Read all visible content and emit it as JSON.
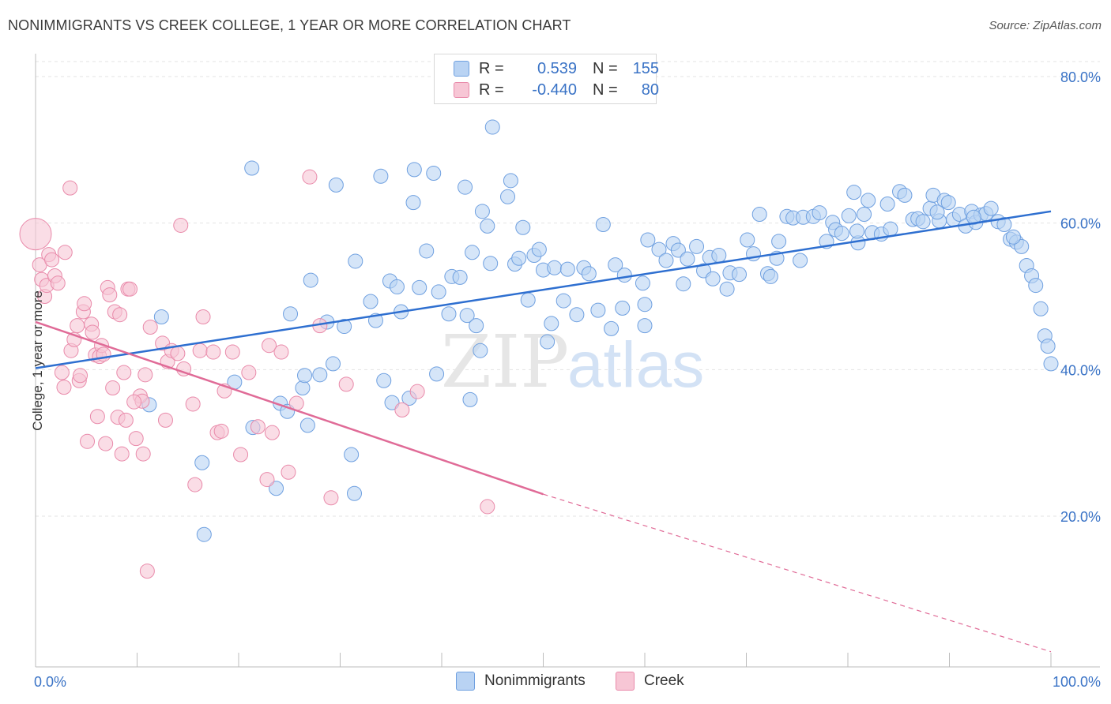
{
  "title": "NONIMMIGRANTS VS CREEK COLLEGE, 1 YEAR OR MORE CORRELATION CHART",
  "source": "Source: ZipAtlas.com",
  "watermark": {
    "zip": "ZIP",
    "atlas": "atlas"
  },
  "legend_top": {
    "rows": [
      {
        "r_label": "R =",
        "r_value": "0.539",
        "n_label": "N =",
        "n_value": "155",
        "color": "#a9c8ef"
      },
      {
        "r_label": "R =",
        "r_value": "-0.440",
        "n_label": "N =",
        "n_value": "80",
        "color": "#f5b8cb"
      }
    ]
  },
  "legend_bottom": [
    {
      "label": "Nonimmigrants",
      "color": "#a9c8ef"
    },
    {
      "label": "Creek",
      "color": "#f5b8cb"
    }
  ],
  "chart_data": {
    "type": "scatter",
    "title": "NONIMMIGRANTS VS CREEK COLLEGE, 1 YEAR OR MORE CORRELATION CHART",
    "xlabel": "",
    "ylabel": "College, 1 year or more",
    "xlim": [
      0,
      100
    ],
    "ylim": [
      0,
      80
    ],
    "x_ticks": [
      "0.0%",
      "100.0%"
    ],
    "y_ticks": [
      {
        "value": 20,
        "label": "20.0%"
      },
      {
        "value": 40,
        "label": "40.0%"
      },
      {
        "value": 60,
        "label": "60.0%"
      },
      {
        "value": 80,
        "label": "80.0%"
      }
    ],
    "grid": true,
    "series": [
      {
        "name": "Nonimmigrants",
        "color": "#6fa0e0",
        "fill": "#b9d3f3",
        "trend": {
          "x0": 0,
          "y0": 40.2,
          "x1": 100,
          "y1": 61.6,
          "color": "#2e6fd0"
        },
        "points": [
          [
            12.4,
            47.2
          ],
          [
            11.2,
            35.2
          ],
          [
            16.6,
            17.5
          ],
          [
            19.6,
            38.3
          ],
          [
            21.4,
            32.1
          ],
          [
            21.3,
            67.5
          ],
          [
            23.7,
            23.8
          ],
          [
            24.1,
            35.4
          ],
          [
            24.8,
            34.3
          ],
          [
            25.1,
            47.6
          ],
          [
            26.3,
            37.5
          ],
          [
            26.5,
            39.2
          ],
          [
            26.8,
            32.4
          ],
          [
            27.1,
            52.2
          ],
          [
            28.0,
            39.3
          ],
          [
            28.7,
            46.5
          ],
          [
            29.3,
            40.8
          ],
          [
            29.6,
            65.2
          ],
          [
            30.4,
            45.9
          ],
          [
            31.1,
            28.4
          ],
          [
            31.4,
            23.1
          ],
          [
            31.5,
            54.8
          ],
          [
            33.0,
            49.3
          ],
          [
            33.5,
            46.7
          ],
          [
            34.0,
            66.4
          ],
          [
            34.3,
            38.5
          ],
          [
            34.9,
            52.1
          ],
          [
            35.1,
            35.5
          ],
          [
            35.6,
            51.3
          ],
          [
            36.0,
            47.9
          ],
          [
            37.2,
            62.8
          ],
          [
            37.3,
            67.3
          ],
          [
            37.8,
            51.2
          ],
          [
            38.5,
            56.2
          ],
          [
            39.2,
            66.8
          ],
          [
            39.5,
            39.4
          ],
          [
            39.7,
            50.6
          ],
          [
            40.7,
            47.6
          ],
          [
            41.0,
            52.7
          ],
          [
            41.8,
            52.6
          ],
          [
            42.3,
            64.9
          ],
          [
            42.5,
            47.4
          ],
          [
            42.8,
            35.9
          ],
          [
            43.0,
            56.0
          ],
          [
            43.4,
            46.0
          ],
          [
            43.8,
            42.6
          ],
          [
            44.0,
            61.6
          ],
          [
            44.5,
            59.6
          ],
          [
            44.8,
            54.5
          ],
          [
            45.0,
            73.1
          ],
          [
            46.5,
            63.6
          ],
          [
            46.8,
            65.8
          ],
          [
            47.2,
            54.4
          ],
          [
            47.6,
            55.2
          ],
          [
            48.0,
            59.4
          ],
          [
            48.5,
            49.5
          ],
          [
            49.1,
            55.6
          ],
          [
            49.6,
            56.4
          ],
          [
            50.0,
            53.6
          ],
          [
            50.4,
            43.8
          ],
          [
            50.8,
            46.3
          ],
          [
            51.1,
            53.9
          ],
          [
            52.0,
            49.4
          ],
          [
            52.4,
            53.7
          ],
          [
            53.3,
            47.5
          ],
          [
            54.0,
            53.9
          ],
          [
            54.5,
            53.1
          ],
          [
            55.4,
            48.1
          ],
          [
            55.9,
            59.8
          ],
          [
            56.7,
            45.6
          ],
          [
            57.1,
            54.3
          ],
          [
            57.8,
            48.4
          ],
          [
            58.0,
            52.9
          ],
          [
            59.8,
            51.8
          ],
          [
            60.0,
            48.9
          ],
          [
            60.3,
            57.7
          ],
          [
            61.4,
            56.4
          ],
          [
            62.1,
            54.9
          ],
          [
            62.8,
            57.2
          ],
          [
            63.3,
            56.3
          ],
          [
            63.8,
            51.7
          ],
          [
            64.2,
            55.1
          ],
          [
            65.1,
            56.8
          ],
          [
            65.8,
            53.5
          ],
          [
            66.4,
            55.3
          ],
          [
            67.3,
            55.6
          ],
          [
            68.1,
            51.0
          ],
          [
            68.4,
            53.2
          ],
          [
            69.3,
            53.0
          ],
          [
            70.1,
            57.7
          ],
          [
            70.7,
            55.8
          ],
          [
            71.3,
            61.2
          ],
          [
            72.1,
            53.1
          ],
          [
            72.4,
            52.7
          ],
          [
            73.2,
            57.5
          ],
          [
            74.0,
            60.9
          ],
          [
            74.6,
            60.7
          ],
          [
            75.3,
            54.9
          ],
          [
            75.6,
            60.8
          ],
          [
            76.6,
            60.9
          ],
          [
            77.2,
            61.4
          ],
          [
            77.9,
            57.5
          ],
          [
            78.5,
            60.1
          ],
          [
            78.8,
            59.1
          ],
          [
            79.4,
            58.6
          ],
          [
            80.1,
            61.0
          ],
          [
            80.6,
            64.2
          ],
          [
            81.0,
            57.3
          ],
          [
            81.6,
            61.2
          ],
          [
            82.0,
            63.1
          ],
          [
            82.4,
            58.7
          ],
          [
            83.3,
            58.5
          ],
          [
            83.9,
            62.6
          ],
          [
            84.2,
            59.2
          ],
          [
            85.1,
            64.3
          ],
          [
            85.6,
            63.8
          ],
          [
            86.4,
            60.5
          ],
          [
            86.9,
            60.6
          ],
          [
            87.4,
            60.2
          ],
          [
            88.1,
            62.0
          ],
          [
            88.4,
            63.8
          ],
          [
            89.0,
            60.3
          ],
          [
            89.5,
            63.1
          ],
          [
            89.9,
            62.8
          ],
          [
            90.4,
            60.5
          ],
          [
            91.0,
            61.2
          ],
          [
            91.6,
            59.6
          ],
          [
            92.2,
            61.6
          ],
          [
            92.6,
            60.1
          ],
          [
            93.1,
            61.1
          ],
          [
            93.6,
            61.3
          ],
          [
            94.1,
            62.0
          ],
          [
            94.8,
            60.2
          ],
          [
            95.4,
            59.8
          ],
          [
            96.0,
            57.8
          ],
          [
            96.6,
            57.4
          ],
          [
            97.1,
            56.8
          ],
          [
            97.6,
            54.2
          ],
          [
            98.1,
            52.8
          ],
          [
            98.5,
            51.5
          ],
          [
            99.0,
            48.3
          ],
          [
            99.4,
            44.6
          ],
          [
            99.7,
            43.2
          ],
          [
            100.0,
            40.8
          ],
          [
            16.4,
            27.3
          ],
          [
            36.8,
            36.1
          ],
          [
            60.0,
            46.0
          ],
          [
            73.0,
            55.2
          ],
          [
            92.4,
            60.8
          ],
          [
            96.3,
            58.1
          ],
          [
            80.9,
            58.9
          ],
          [
            88.8,
            61.5
          ],
          [
            66.7,
            52.4
          ]
        ]
      },
      {
        "name": "Creek",
        "color": "#e98aaa",
        "fill": "#f7c6d5",
        "trend": {
          "x0": 0,
          "y0": 46.5,
          "x1": 50,
          "y1": 23.0,
          "dash_to": {
            "x": 100,
            "y": 1.5
          },
          "color": "#e06b97"
        },
        "points": [
          [
            0.0,
            58.5
          ],
          [
            0.4,
            54.3
          ],
          [
            0.6,
            52.3
          ],
          [
            0.9,
            50.0
          ],
          [
            1.1,
            51.5
          ],
          [
            1.3,
            55.7
          ],
          [
            1.6,
            55.0
          ],
          [
            1.9,
            52.8
          ],
          [
            2.2,
            51.8
          ],
          [
            2.6,
            39.6
          ],
          [
            2.8,
            37.6
          ],
          [
            2.9,
            56.0
          ],
          [
            3.4,
            64.8
          ],
          [
            3.5,
            42.6
          ],
          [
            3.8,
            44.1
          ],
          [
            4.1,
            46.0
          ],
          [
            4.3,
            38.5
          ],
          [
            4.4,
            39.2
          ],
          [
            4.7,
            47.9
          ],
          [
            4.8,
            49.0
          ],
          [
            5.1,
            30.2
          ],
          [
            5.5,
            46.2
          ],
          [
            5.6,
            45.1
          ],
          [
            5.9,
            42.0
          ],
          [
            6.1,
            33.6
          ],
          [
            6.3,
            41.8
          ],
          [
            6.5,
            43.3
          ],
          [
            6.7,
            42.1
          ],
          [
            6.9,
            29.9
          ],
          [
            7.1,
            51.2
          ],
          [
            7.3,
            50.2
          ],
          [
            7.6,
            37.5
          ],
          [
            7.8,
            47.9
          ],
          [
            8.1,
            33.5
          ],
          [
            8.3,
            47.5
          ],
          [
            8.5,
            28.5
          ],
          [
            8.7,
            39.6
          ],
          [
            8.9,
            33.1
          ],
          [
            9.1,
            51.0
          ],
          [
            9.3,
            51.0
          ],
          [
            9.9,
            30.6
          ],
          [
            10.3,
            36.4
          ],
          [
            10.5,
            35.7
          ],
          [
            10.6,
            28.5
          ],
          [
            10.8,
            39.3
          ],
          [
            11.3,
            45.8
          ],
          [
            12.5,
            43.6
          ],
          [
            12.8,
            33.1
          ],
          [
            13.0,
            41.1
          ],
          [
            13.4,
            42.6
          ],
          [
            14.0,
            42.2
          ],
          [
            14.3,
            59.7
          ],
          [
            14.6,
            40.1
          ],
          [
            15.5,
            35.3
          ],
          [
            15.7,
            24.3
          ],
          [
            16.2,
            42.6
          ],
          [
            16.5,
            47.2
          ],
          [
            17.5,
            42.4
          ],
          [
            17.9,
            31.4
          ],
          [
            18.3,
            31.6
          ],
          [
            18.6,
            37.1
          ],
          [
            19.4,
            42.4
          ],
          [
            20.2,
            28.4
          ],
          [
            21.0,
            39.6
          ],
          [
            21.9,
            32.2
          ],
          [
            22.8,
            25.0
          ],
          [
            23.0,
            43.3
          ],
          [
            23.3,
            31.4
          ],
          [
            24.2,
            42.4
          ],
          [
            24.9,
            26.0
          ],
          [
            25.7,
            35.4
          ],
          [
            27.0,
            66.3
          ],
          [
            28.0,
            46.0
          ],
          [
            29.1,
            22.5
          ],
          [
            30.6,
            38.0
          ],
          [
            36.1,
            34.5
          ],
          [
            37.6,
            37.0
          ],
          [
            44.5,
            21.3
          ],
          [
            11.0,
            12.5
          ],
          [
            9.7,
            35.6
          ]
        ]
      }
    ]
  }
}
